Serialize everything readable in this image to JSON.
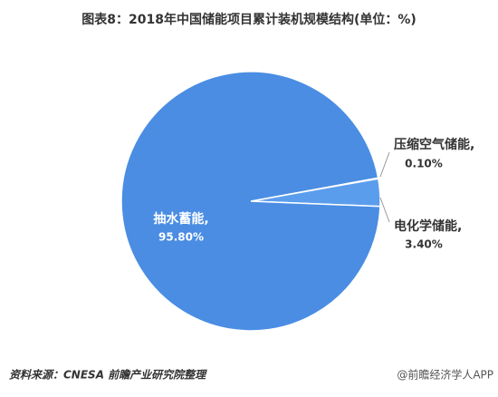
{
  "chart_data": {
    "type": "pie",
    "title": "图表8：2018年中国储能项目累计装机规模结构(单位：%)",
    "categories": [
      "压缩空气储能,",
      "电化学储能,",
      "抽水蓄能,"
    ],
    "values": [
      0.1,
      3.4,
      95.8
    ],
    "value_labels": [
      "0.10%",
      "3.40%",
      "95.80%"
    ],
    "colors": [
      "#5b9ded",
      "#5b9ded",
      "#4a8de3"
    ],
    "source": "资料来源：CNESA 前瞻产业研究院整理",
    "watermark": "@前瞻经济学人APP"
  }
}
